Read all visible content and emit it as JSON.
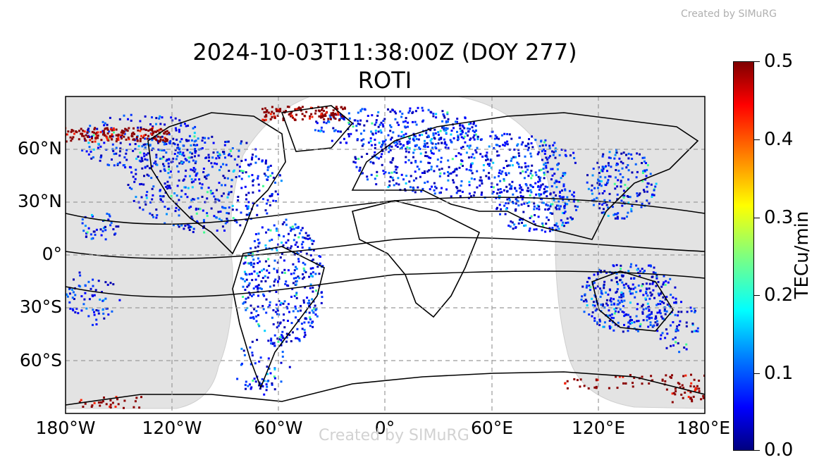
{
  "credit_top": "Created by SIMuRG",
  "title": {
    "line1": "2024-10-03T11:38:00Z (DOY 277)",
    "line2": "ROTI"
  },
  "watermark": "Created by SIMuRG",
  "map": {
    "projection": "plate-carree",
    "lon_range": [
      -180,
      180
    ],
    "lat_range": [
      -90,
      90
    ],
    "gridlines": {
      "lon": [
        -120,
        -60,
        0,
        60,
        120
      ],
      "lat": [
        -60,
        -30,
        0,
        30,
        60
      ],
      "style": "dashed"
    },
    "night_shading_color": "#e3e3e3",
    "x_ticks": [
      "180°W",
      "120°W",
      "60°W",
      "0°",
      "60°E",
      "120°E",
      "180°E"
    ],
    "y_ticks": [
      "60°N",
      "30°N",
      "0°",
      "30°S",
      "60°S"
    ]
  },
  "colorbar": {
    "label": "TECu/min",
    "ticks": [
      "0.5",
      "0.4",
      "0.3",
      "0.2",
      "0.1",
      "0.0"
    ],
    "range": [
      0.0,
      0.5
    ],
    "colormap": "jet"
  }
}
